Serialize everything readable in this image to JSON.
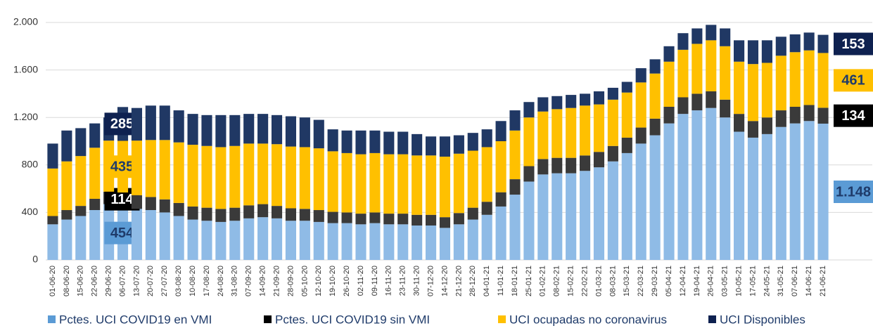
{
  "chart_data": {
    "type": "stacked_bar",
    "categories": [
      "01-06-20",
      "08-06-20",
      "15-06-20",
      "22-06-20",
      "29-06-20",
      "06-07-20",
      "13-07-20",
      "20-07-20",
      "27-07-20",
      "03-08-20",
      "10-08-20",
      "17-08-20",
      "24-08-20",
      "31-08-20",
      "07-09-20",
      "14-09-20",
      "21-09-20",
      "28-09-20",
      "05-10-20",
      "12-10-20",
      "19-10-20",
      "26-10-20",
      "02-11-20",
      "09-11-20",
      "16-11-20",
      "23-11-20",
      "30-11-20",
      "07-12-20",
      "14-12-20",
      "21-12-20",
      "28-12-20",
      "04-01-21",
      "11-01-21",
      "18-01-21",
      "25-01-21",
      "01-02-21",
      "08-02-21",
      "15-02-21",
      "22-02-21",
      "01-03-21",
      "08-03-21",
      "15-03-21",
      "22-03-21",
      "29-03-21",
      "05-04-21",
      "12-04-21",
      "19-04-21",
      "26-04-21",
      "03-05-21",
      "10-05-21",
      "17-05-21",
      "24-05-21",
      "31-05-21",
      "07-06-21",
      "14-06-21",
      "21-06-21"
    ],
    "series": [
      {
        "name": "Pctes. UCI COVID19 en VMI",
        "color": "#8fbbe6",
        "label_color": "#5b9bd5",
        "label_text_color": "#1f3b6a",
        "values": [
          300,
          340,
          370,
          420,
          470,
          454,
          430,
          420,
          400,
          370,
          340,
          330,
          320,
          330,
          350,
          360,
          350,
          330,
          330,
          320,
          310,
          310,
          300,
          310,
          300,
          300,
          290,
          290,
          270,
          300,
          340,
          380,
          450,
          550,
          660,
          720,
          730,
          730,
          750,
          780,
          830,
          900,
          980,
          1050,
          1150,
          1230,
          1260,
          1280,
          1200,
          1080,
          1030,
          1060,
          1120,
          1150,
          1170,
          1148
        ],
        "value_labels": [
          null,
          null,
          null,
          null,
          null,
          "454",
          null,
          null,
          null,
          null,
          null,
          null,
          null,
          null,
          null,
          null,
          null,
          null,
          null,
          null,
          null,
          null,
          null,
          null,
          null,
          null,
          null,
          null,
          null,
          null,
          null,
          null,
          null,
          null,
          null,
          null,
          null,
          null,
          null,
          null,
          null,
          null,
          null,
          null,
          null,
          null,
          null,
          null,
          null,
          null,
          null,
          null,
          null,
          null,
          null,
          "1.148"
        ]
      },
      {
        "name": "Pctes. UCI COVID19 sin VMI",
        "color": "#3a3a3a",
        "label_color": "#000000",
        "label_text_color": "#ffffff",
        "values": [
          70,
          80,
          85,
          95,
          105,
          114,
          115,
          110,
          110,
          110,
          110,
          110,
          110,
          110,
          110,
          110,
          105,
          105,
          100,
          100,
          95,
          90,
          90,
          90,
          90,
          90,
          90,
          90,
          90,
          95,
          100,
          110,
          120,
          130,
          130,
          130,
          130,
          130,
          130,
          130,
          130,
          130,
          135,
          140,
          140,
          140,
          140,
          140,
          150,
          150,
          140,
          140,
          140,
          140,
          135,
          134
        ],
        "value_labels": [
          null,
          null,
          null,
          null,
          null,
          "114",
          null,
          null,
          null,
          null,
          null,
          null,
          null,
          null,
          null,
          null,
          null,
          null,
          null,
          null,
          null,
          null,
          null,
          null,
          null,
          null,
          null,
          null,
          null,
          null,
          null,
          null,
          null,
          null,
          null,
          null,
          null,
          null,
          null,
          null,
          null,
          null,
          null,
          null,
          null,
          null,
          null,
          null,
          null,
          null,
          null,
          null,
          null,
          null,
          null,
          "134"
        ]
      },
      {
        "name": "UCI ocupadas no coronavirus",
        "color": "#ffc000",
        "label_color": "#ffc000",
        "label_text_color": "#1f3b6a",
        "values": [
          400,
          410,
          420,
          430,
          430,
          435,
          460,
          480,
          500,
          510,
          520,
          520,
          520,
          520,
          520,
          510,
          520,
          520,
          520,
          520,
          510,
          500,
          500,
          500,
          500,
          500,
          500,
          500,
          510,
          500,
          480,
          460,
          430,
          410,
          410,
          400,
          410,
          420,
          420,
          400,
          390,
          380,
          380,
          380,
          380,
          400,
          420,
          430,
          450,
          440,
          480,
          460,
          460,
          460,
          460,
          461
        ],
        "value_labels": [
          null,
          null,
          null,
          null,
          null,
          "435",
          null,
          null,
          null,
          null,
          null,
          null,
          null,
          null,
          null,
          null,
          null,
          null,
          null,
          null,
          null,
          null,
          null,
          null,
          null,
          null,
          null,
          null,
          null,
          null,
          null,
          null,
          null,
          null,
          null,
          null,
          null,
          null,
          null,
          null,
          null,
          null,
          null,
          null,
          null,
          null,
          null,
          null,
          null,
          null,
          null,
          null,
          null,
          null,
          null,
          "461"
        ]
      },
      {
        "name": "UCI Disponibles",
        "color": "#203864",
        "label_color": "#0e2150",
        "label_text_color": "#ffffff",
        "values": [
          210,
          260,
          235,
          205,
          195,
          285,
          275,
          290,
          290,
          270,
          260,
          260,
          270,
          260,
          250,
          250,
          245,
          255,
          250,
          240,
          185,
          190,
          200,
          190,
          190,
          190,
          180,
          160,
          170,
          155,
          150,
          150,
          170,
          170,
          130,
          120,
          110,
          110,
          100,
          110,
          100,
          90,
          120,
          120,
          130,
          140,
          130,
          130,
          150,
          180,
          200,
          190,
          160,
          150,
          150,
          153
        ],
        "value_labels": [
          null,
          null,
          null,
          null,
          null,
          "285",
          null,
          null,
          null,
          null,
          null,
          null,
          null,
          null,
          null,
          null,
          null,
          null,
          null,
          null,
          null,
          null,
          null,
          null,
          null,
          null,
          null,
          null,
          null,
          null,
          null,
          null,
          null,
          null,
          null,
          null,
          null,
          null,
          null,
          null,
          null,
          null,
          null,
          null,
          null,
          null,
          null,
          null,
          null,
          null,
          null,
          null,
          null,
          null,
          null,
          "153"
        ]
      }
    ],
    "ylim": [
      0,
      2000
    ],
    "yticks": [
      0,
      400,
      800,
      {
        "value": 1200,
        "label": "1.200"
      },
      {
        "value": 1600,
        "label": "1.600"
      },
      {
        "value": 2000,
        "label": "2.000"
      }
    ],
    "grid": true
  }
}
